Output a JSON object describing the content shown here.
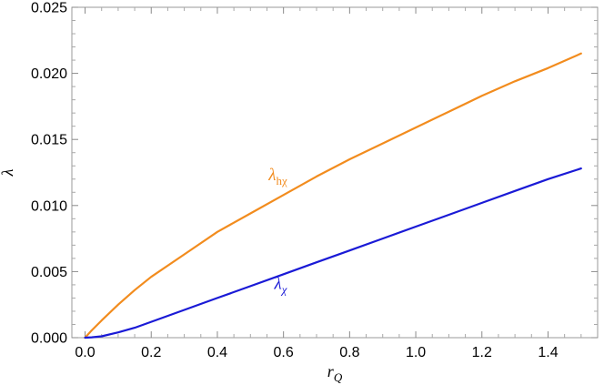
{
  "chart_data": {
    "type": "line",
    "xlabel_main": "r",
    "xlabel_sub": "Q",
    "ylabel": "λ",
    "xlim": [
      -0.04,
      1.55
    ],
    "ylim": [
      0,
      0.025
    ],
    "xticks": [
      "0.0",
      "0.2",
      "0.4",
      "0.6",
      "0.8",
      "1.0",
      "1.2",
      "1.4"
    ],
    "yticks": [
      "0.000",
      "0.005",
      "0.010",
      "0.015",
      "0.020",
      "0.025"
    ],
    "grid": false,
    "frame": "full box with ticks on all sides",
    "series": [
      {
        "name_main": "λ",
        "name_sub": "hχ",
        "color": "#F28C1E",
        "x": [
          0.0,
          0.02,
          0.05,
          0.1,
          0.15,
          0.2,
          0.3,
          0.4,
          0.5,
          0.6,
          0.7,
          0.8,
          0.9,
          1.0,
          1.1,
          1.2,
          1.3,
          1.4,
          1.5
        ],
        "y": [
          0.0,
          0.00055,
          0.0013,
          0.0025,
          0.0036,
          0.0046,
          0.0063,
          0.008,
          0.0094,
          0.0108,
          0.0122,
          0.0135,
          0.0147,
          0.0159,
          0.0171,
          0.0183,
          0.0194,
          0.0204,
          0.0215
        ]
      },
      {
        "name_main": "λ",
        "name_sub": "χ",
        "color": "#1A1AD6",
        "x": [
          0.0,
          0.02,
          0.05,
          0.1,
          0.15,
          0.2,
          0.3,
          0.4,
          0.5,
          0.6,
          0.7,
          0.8,
          0.9,
          1.0,
          1.1,
          1.2,
          1.3,
          1.4,
          1.5
        ],
        "y": [
          0.0,
          3e-05,
          0.0001,
          0.0004,
          0.00075,
          0.0012,
          0.0021,
          0.003,
          0.0039,
          0.0048,
          0.0057,
          0.0066,
          0.0075,
          0.0084,
          0.0093,
          0.0102,
          0.0111,
          0.012,
          0.0128
        ]
      }
    ]
  }
}
